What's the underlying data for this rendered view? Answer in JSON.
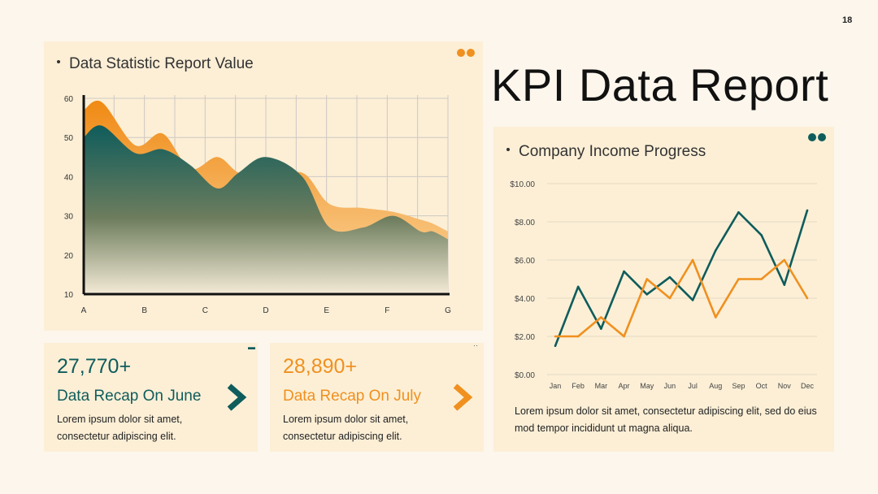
{
  "page_number": "18",
  "main_title": "KPI Data Report",
  "colors": {
    "teal": "#0f5c5c",
    "orange": "#f0901f",
    "panel": "#fcefd6",
    "background": "#fcf6ec"
  },
  "area_panel": {
    "title": "Data Statistic Report Value"
  },
  "income_panel": {
    "title": "Company Income Progress",
    "description": "Lorem ipsum dolor sit amet, consectetur adipiscing elit, sed do eius mod tempor incididunt ut magna aliqua."
  },
  "kpi_cards": [
    {
      "value": "27,770+",
      "label": "Data Recap On June",
      "description": "Lorem ipsum dolor sit amet, consectetur adipiscing elit.",
      "color": "#0f5c5c",
      "icon": "chevron-right-icon"
    },
    {
      "value": "28,890+",
      "label": "Data Recap On July",
      "description": "Lorem ipsum dolor sit amet, consectetur adipiscing elit.",
      "color": "#f0901f",
      "icon": "chevron-right-icon"
    }
  ],
  "chart_data": [
    {
      "type": "area",
      "title": "Data Statistic Report Value",
      "categories": [
        "A",
        "B",
        "C",
        "D",
        "E",
        "F",
        "G"
      ],
      "x": [
        0,
        0.3,
        0.85,
        1.3,
        1.75,
        2.2,
        2.55,
        3.0,
        3.6,
        4.05,
        4.6,
        5.1,
        5.55,
        5.75,
        6.0
      ],
      "series": [
        {
          "values": [
            57,
            59,
            48,
            51,
            42,
            45,
            41,
            39,
            41,
            33,
            32,
            31,
            29,
            28,
            26
          ],
          "color": "#f0901f"
        },
        {
          "values": [
            50,
            53,
            46,
            47,
            43,
            37,
            41,
            45,
            40,
            27,
            27,
            30,
            26,
            26,
            24
          ],
          "color": "#0f5c5c"
        }
      ],
      "y_ticks": [
        10,
        20,
        30,
        40,
        50,
        60
      ],
      "ylim": [
        10,
        60
      ],
      "grid": true,
      "legend": "none"
    },
    {
      "type": "line",
      "title": "Company Income Progress",
      "categories": [
        "Jan",
        "Feb",
        "Mar",
        "Apr",
        "May",
        "Jun",
        "Jul",
        "Aug",
        "Sep",
        "Oct",
        "Nov",
        "Dec"
      ],
      "series": [
        {
          "values": [
            1.5,
            4.6,
            2.4,
            5.4,
            4.2,
            5.1,
            3.9,
            6.5,
            8.5,
            7.3,
            4.7,
            8.6
          ],
          "color": "#0f5c5c"
        },
        {
          "values": [
            2.0,
            2.0,
            3.0,
            2.0,
            5.0,
            4.0,
            6.0,
            3.0,
            5.0,
            5.0,
            6.0,
            4.0
          ],
          "color": "#f0901f"
        }
      ],
      "y_ticks": [
        "$0.00",
        "$2.00",
        "$4.00",
        "$6.00",
        "$8.00",
        "$10.00"
      ],
      "ylim": [
        0,
        10
      ],
      "grid": true,
      "legend": "none"
    }
  ]
}
